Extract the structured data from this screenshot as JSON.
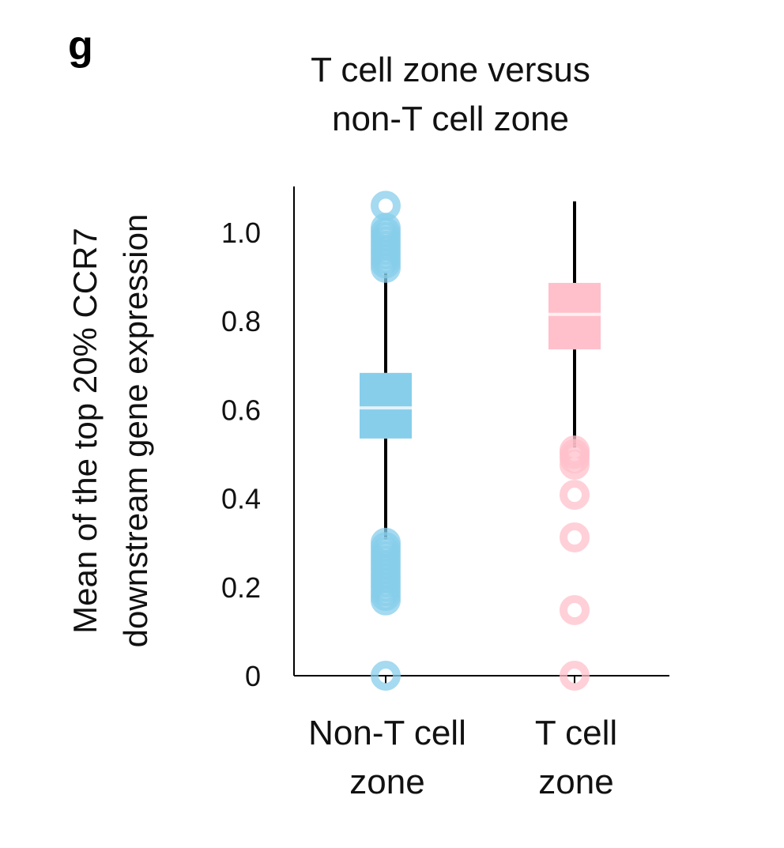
{
  "panel_label": "g",
  "chart_data": {
    "type": "box",
    "title": "T cell zone versus non-T cell zone",
    "title_lines": [
      "T cell zone versus",
      "non-T cell zone"
    ],
    "ylabel": "Mean of the top 20% CCR7 downstream gene expression",
    "ylabel_lines": [
      "Mean of the top 20% CCR7",
      "downstream gene expression"
    ],
    "xlabel": "",
    "ylim": [
      0,
      1.1
    ],
    "yticks": [
      0,
      0.2,
      0.4,
      0.6,
      0.8,
      1.0
    ],
    "ytick_labels": [
      "0",
      "0.2",
      "0.4",
      "0.6",
      "0.8",
      "1.0"
    ],
    "grid": false,
    "categories": [
      "Non-T cell zone",
      "T cell zone"
    ],
    "category_lines": [
      [
        "Non-T cell",
        "zone"
      ],
      [
        "T cell",
        "zone"
      ]
    ],
    "series": [
      {
        "name": "Non-T cell zone",
        "color": "#87ceeb",
        "whisker_low": 0.307,
        "q1": 0.535,
        "median": 0.604,
        "q3": 0.683,
        "whisker_high": 0.909,
        "outliers": [
          0.0,
          0.17,
          0.18,
          0.19,
          0.2,
          0.21,
          0.22,
          0.23,
          0.24,
          0.25,
          0.26,
          0.27,
          0.28,
          0.29,
          0.3,
          0.92,
          0.93,
          0.94,
          0.95,
          0.96,
          0.97,
          0.98,
          0.99,
          1.0,
          1.01,
          1.06
        ]
      },
      {
        "name": "T cell zone",
        "color": "#ffc0cb",
        "whisker_low": 0.515,
        "q1": 0.736,
        "median": 0.815,
        "q3": 0.886,
        "whisker_high": 1.07,
        "outliers": [
          0.0,
          0.148,
          0.312,
          0.408,
          0.476,
          0.49,
          0.5,
          0.508
        ]
      }
    ]
  }
}
